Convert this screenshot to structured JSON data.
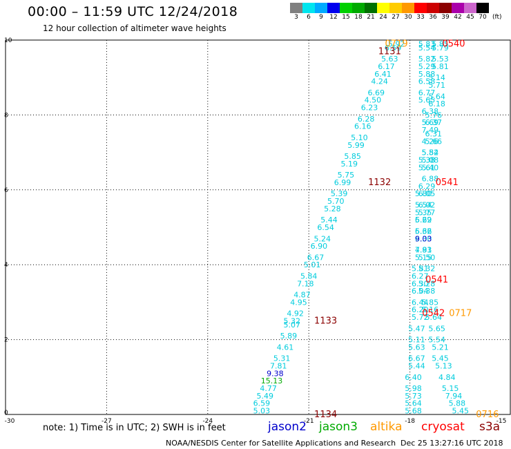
{
  "header": {
    "title": "00:00 – 11:59 UTC 12/24/2018",
    "subtitle": "12 hour collection of altimeter wave heights"
  },
  "colorbar": {
    "unit": "(ft)",
    "items": [
      {
        "label": "3",
        "color": "#808080"
      },
      {
        "label": "6",
        "color": "#00e5ee"
      },
      {
        "label": "9",
        "color": "#00aaff"
      },
      {
        "label": "12",
        "color": "#0000ee"
      },
      {
        "label": "15",
        "color": "#00d000"
      },
      {
        "label": "18",
        "color": "#00aa00"
      },
      {
        "label": "21",
        "color": "#007000"
      },
      {
        "label": "24",
        "color": "#ffff00"
      },
      {
        "label": "27",
        "color": "#ffcc00"
      },
      {
        "label": "30",
        "color": "#ff9900"
      },
      {
        "label": "33",
        "color": "#ff0000"
      },
      {
        "label": "36",
        "color": "#cc0000"
      },
      {
        "label": "39",
        "color": "#8b0000"
      },
      {
        "label": "42",
        "color": "#aa00aa"
      },
      {
        "label": "45",
        "color": "#cc66cc"
      },
      {
        "label": "70",
        "color": "#000000"
      }
    ]
  },
  "chart_data": {
    "type": "scatter",
    "x_ticks": [
      "-30",
      "-27",
      "-24",
      "-21",
      "-18",
      "-15"
    ],
    "y_ticks": [
      "0",
      "2",
      "4",
      "6",
      "8",
      "10"
    ],
    "xlim": [
      -30,
      -15
    ],
    "ylim": [
      0,
      10
    ],
    "grid": true,
    "points": [
      {
        "x": -22.4,
        "y": 0.1,
        "label": "5.03",
        "color": "#00ccdd"
      },
      {
        "x": -22.4,
        "y": 0.3,
        "label": "6.59",
        "color": "#00ccdd"
      },
      {
        "x": -22.3,
        "y": 0.5,
        "label": "5.49",
        "color": "#00ccdd"
      },
      {
        "x": -22.2,
        "y": 0.7,
        "label": "4.77",
        "color": "#00ccdd"
      },
      {
        "x": -22.1,
        "y": 0.9,
        "label": "15.13",
        "color": "#00aa00"
      },
      {
        "x": -22.0,
        "y": 1.1,
        "label": "9.38",
        "color": "#0000cc"
      },
      {
        "x": -21.9,
        "y": 1.3,
        "label": "7.81",
        "color": "#00ccdd"
      },
      {
        "x": -21.8,
        "y": 1.5,
        "label": "5.31",
        "color": "#00ccdd"
      },
      {
        "x": -21.7,
        "y": 1.8,
        "label": "4.61",
        "color": "#00ccdd"
      },
      {
        "x": -21.6,
        "y": 2.1,
        "label": "5.89",
        "color": "#00ccdd"
      },
      {
        "x": -21.5,
        "y": 2.4,
        "label": "5.07",
        "color": "#00ccdd"
      },
      {
        "x": -21.5,
        "y": 2.5,
        "label": "5.32",
        "color": "#00ccdd"
      },
      {
        "x": -21.4,
        "y": 2.7,
        "label": "4.92",
        "color": "#00ccdd"
      },
      {
        "x": -21.3,
        "y": 3.0,
        "label": "4.95",
        "color": "#00ccdd"
      },
      {
        "x": -21.2,
        "y": 3.2,
        "label": "4.87",
        "color": "#00ccdd"
      },
      {
        "x": -21.1,
        "y": 3.5,
        "label": "7.18",
        "color": "#00ccdd"
      },
      {
        "x": -21.0,
        "y": 3.7,
        "label": "5.84",
        "color": "#00ccdd"
      },
      {
        "x": -20.9,
        "y": 4.0,
        "label": "5.01",
        "color": "#00ccdd"
      },
      {
        "x": -20.8,
        "y": 4.2,
        "label": "6.67",
        "color": "#00ccdd"
      },
      {
        "x": -20.7,
        "y": 4.5,
        "label": "6.90",
        "color": "#00ccdd"
      },
      {
        "x": -20.6,
        "y": 4.7,
        "label": "5.24",
        "color": "#00ccdd"
      },
      {
        "x": -20.5,
        "y": 5.0,
        "label": "6.54",
        "color": "#00ccdd"
      },
      {
        "x": -20.4,
        "y": 5.2,
        "label": "5.44",
        "color": "#00ccdd"
      },
      {
        "x": -20.3,
        "y": 5.5,
        "label": "5.28",
        "color": "#00ccdd"
      },
      {
        "x": -20.2,
        "y": 5.7,
        "label": "5.70",
        "color": "#00ccdd"
      },
      {
        "x": -20.1,
        "y": 5.9,
        "label": "5.39",
        "color": "#00ccdd"
      },
      {
        "x": -20.0,
        "y": 6.2,
        "label": "6.99",
        "color": "#00ccdd"
      },
      {
        "x": -19.9,
        "y": 6.4,
        "label": "5.75",
        "color": "#00ccdd"
      },
      {
        "x": -19.8,
        "y": 6.7,
        "label": "5.19",
        "color": "#00ccdd"
      },
      {
        "x": -19.7,
        "y": 6.9,
        "label": "5.85",
        "color": "#00ccdd"
      },
      {
        "x": -19.6,
        "y": 7.2,
        "label": "5.99",
        "color": "#00ccdd"
      },
      {
        "x": -19.5,
        "y": 7.4,
        "label": "5.10",
        "color": "#00ccdd"
      },
      {
        "x": -19.4,
        "y": 7.7,
        "label": "6.16",
        "color": "#00ccdd"
      },
      {
        "x": -19.3,
        "y": 7.9,
        "label": "6.28",
        "color": "#00ccdd"
      },
      {
        "x": -19.2,
        "y": 8.2,
        "label": "6.23",
        "color": "#00ccdd"
      },
      {
        "x": -19.1,
        "y": 8.4,
        "label": "4.50",
        "color": "#00ccdd"
      },
      {
        "x": -19.0,
        "y": 8.6,
        "label": "6.69",
        "color": "#00ccdd"
      },
      {
        "x": -18.9,
        "y": 8.9,
        "label": "4.24",
        "color": "#00ccdd"
      },
      {
        "x": -18.8,
        "y": 9.1,
        "label": "6.41",
        "color": "#00ccdd"
      },
      {
        "x": -18.7,
        "y": 9.3,
        "label": "6.17",
        "color": "#00ccdd"
      },
      {
        "x": -18.6,
        "y": 9.5,
        "label": "5.63",
        "color": "#00ccdd"
      },
      {
        "x": -18.5,
        "y": 9.8,
        "label": "6.59",
        "color": "#00ccdd"
      },
      {
        "x": -18.4,
        "y": 9.9,
        "label": "5.92",
        "color": "#00ccdd"
      },
      {
        "x": -17.9,
        "y": 0.1,
        "label": "5.68",
        "color": "#00ccdd"
      },
      {
        "x": -17.9,
        "y": 0.3,
        "label": "5.64",
        "color": "#00ccdd"
      },
      {
        "x": -17.9,
        "y": 0.5,
        "label": "5.73",
        "color": "#00ccdd"
      },
      {
        "x": -17.9,
        "y": 0.7,
        "label": "5.98",
        "color": "#00ccdd"
      },
      {
        "x": -17.9,
        "y": 1.0,
        "label": "6.40",
        "color": "#00ccdd"
      },
      {
        "x": -17.8,
        "y": 1.3,
        "label": "5.44",
        "color": "#00ccdd"
      },
      {
        "x": -17.8,
        "y": 1.5,
        "label": "6.67",
        "color": "#00ccdd"
      },
      {
        "x": -17.8,
        "y": 1.8,
        "label": "5.63",
        "color": "#00ccdd"
      },
      {
        "x": -17.8,
        "y": 2.0,
        "label": "5.11",
        "color": "#00ccdd"
      },
      {
        "x": -17.8,
        "y": 2.3,
        "label": "5.47",
        "color": "#00ccdd"
      },
      {
        "x": -17.7,
        "y": 2.6,
        "label": "5.72",
        "color": "#00ccdd"
      },
      {
        "x": -17.7,
        "y": 2.8,
        "label": "6.20",
        "color": "#00ccdd"
      },
      {
        "x": -17.7,
        "y": 3.0,
        "label": "6.44",
        "color": "#00ccdd"
      },
      {
        "x": -17.7,
        "y": 3.3,
        "label": "6.04",
        "color": "#00ccdd"
      },
      {
        "x": -17.7,
        "y": 3.5,
        "label": "6.30",
        "color": "#00ccdd"
      },
      {
        "x": -17.7,
        "y": 3.7,
        "label": "6.27",
        "color": "#00ccdd"
      },
      {
        "x": -17.7,
        "y": 3.9,
        "label": "5.81",
        "color": "#00ccdd"
      },
      {
        "x": -17.6,
        "y": 4.2,
        "label": "5.15",
        "color": "#00ccdd"
      },
      {
        "x": -17.6,
        "y": 4.4,
        "label": "4.81",
        "color": "#00ccdd"
      },
      {
        "x": -17.6,
        "y": 4.7,
        "label": "6.30",
        "color": "#00ccdd"
      },
      {
        "x": -17.6,
        "y": 4.9,
        "label": "6.62",
        "color": "#00ccdd"
      },
      {
        "x": -17.6,
        "y": 5.2,
        "label": "6.62",
        "color": "#00ccdd"
      },
      {
        "x": -17.5,
        "y": 5.4,
        "label": "5.77",
        "color": "#00ccdd"
      },
      {
        "x": -17.5,
        "y": 5.6,
        "label": "6.02",
        "color": "#00ccdd"
      },
      {
        "x": -17.5,
        "y": 5.9,
        "label": "6.05",
        "color": "#00ccdd"
      },
      {
        "x": -17.5,
        "y": 6.1,
        "label": "6.29",
        "color": "#00ccdd"
      },
      {
        "x": -17.4,
        "y": 6.3,
        "label": "6.88",
        "color": "#00ccdd"
      },
      {
        "x": -17.4,
        "y": 6.6,
        "label": "5.40",
        "color": "#00ccdd"
      },
      {
        "x": -17.4,
        "y": 6.8,
        "label": "5.08",
        "color": "#00ccdd"
      },
      {
        "x": -17.4,
        "y": 7.0,
        "label": "5.82",
        "color": "#00ccdd"
      },
      {
        "x": -17.3,
        "y": 7.3,
        "label": "5.66",
        "color": "#00ccdd"
      },
      {
        "x": -17.3,
        "y": 7.5,
        "label": "6.31",
        "color": "#00ccdd"
      },
      {
        "x": -17.3,
        "y": 7.8,
        "label": "6.37",
        "color": "#00ccdd"
      },
      {
        "x": -17.3,
        "y": 8.0,
        "label": "5.76",
        "color": "#00ccdd"
      },
      {
        "x": -17.2,
        "y": 8.3,
        "label": "6.18",
        "color": "#00ccdd"
      },
      {
        "x": -17.2,
        "y": 8.5,
        "label": "5.64",
        "color": "#00ccdd"
      },
      {
        "x": -17.2,
        "y": 8.8,
        "label": "5.71",
        "color": "#00ccdd"
      },
      {
        "x": -17.2,
        "y": 9.0,
        "label": "5.14",
        "color": "#00ccdd"
      },
      {
        "x": -17.1,
        "y": 9.3,
        "label": "5.81",
        "color": "#00ccdd"
      },
      {
        "x": -17.1,
        "y": 9.5,
        "label": "5.53",
        "color": "#00ccdd"
      },
      {
        "x": -17.1,
        "y": 9.8,
        "label": "5.79",
        "color": "#00ccdd"
      },
      {
        "x": -17.1,
        "y": 9.9,
        "label": "5.85",
        "color": "#00ccdd"
      },
      {
        "x": -16.5,
        "y": 0.1,
        "label": "5.45",
        "color": "#00ccdd"
      },
      {
        "x": -16.6,
        "y": 0.3,
        "label": "5.88",
        "color": "#00ccdd"
      },
      {
        "x": -16.7,
        "y": 0.5,
        "label": "7.94",
        "color": "#00ccdd"
      },
      {
        "x": -16.8,
        "y": 0.7,
        "label": "5.15",
        "color": "#00ccdd"
      },
      {
        "x": -16.9,
        "y": 1.0,
        "label": "4.84",
        "color": "#00ccdd"
      },
      {
        "x": -17.0,
        "y": 1.3,
        "label": "5.13",
        "color": "#00ccdd"
      },
      {
        "x": -17.1,
        "y": 1.5,
        "label": "5.45",
        "color": "#00ccdd"
      },
      {
        "x": -17.1,
        "y": 1.8,
        "label": "5.21",
        "color": "#00ccdd"
      },
      {
        "x": -17.2,
        "y": 2.0,
        "label": "5.54",
        "color": "#00ccdd"
      },
      {
        "x": -17.2,
        "y": 2.3,
        "label": "5.65",
        "color": "#00ccdd"
      },
      {
        "x": -17.3,
        "y": 2.6,
        "label": "5.64",
        "color": "#00ccdd"
      },
      {
        "x": -17.4,
        "y": 2.8,
        "label": "5.16",
        "color": "#00ccdd"
      },
      {
        "x": -17.4,
        "y": 3.0,
        "label": "5.85",
        "color": "#00ccdd"
      },
      {
        "x": -17.5,
        "y": 3.3,
        "label": "5.38",
        "color": "#00ccdd"
      },
      {
        "x": -17.5,
        "y": 3.5,
        "label": "5.28",
        "color": "#00ccdd"
      },
      {
        "x": -17.5,
        "y": 3.9,
        "label": "5.32",
        "color": "#00ccdd"
      },
      {
        "x": -17.5,
        "y": 4.2,
        "label": "5.50",
        "color": "#00ccdd"
      },
      {
        "x": -17.6,
        "y": 4.4,
        "label": "7.93",
        "color": "#00ccdd"
      },
      {
        "x": -17.6,
        "y": 4.7,
        "label": "9.03",
        "color": "#0000cc"
      },
      {
        "x": -17.6,
        "y": 4.9,
        "label": "5.36",
        "color": "#00ccdd"
      },
      {
        "x": -17.6,
        "y": 5.2,
        "label": "5.29",
        "color": "#00ccdd"
      },
      {
        "x": -17.6,
        "y": 5.4,
        "label": "5.35",
        "color": "#00ccdd"
      },
      {
        "x": -17.6,
        "y": 5.6,
        "label": "5.54",
        "color": "#00ccdd"
      },
      {
        "x": -17.6,
        "y": 5.9,
        "label": "5.80",
        "color": "#00ccdd"
      },
      {
        "x": -17.5,
        "y": 6.6,
        "label": "5.61",
        "color": "#00ccdd"
      },
      {
        "x": -17.5,
        "y": 6.8,
        "label": "5.38",
        "color": "#00ccdd"
      },
      {
        "x": -17.4,
        "y": 7.0,
        "label": "5.54",
        "color": "#00ccdd"
      },
      {
        "x": -17.4,
        "y": 7.3,
        "label": "4.26",
        "color": "#00ccdd"
      },
      {
        "x": -17.4,
        "y": 7.6,
        "label": "7.49",
        "color": "#00ccdd"
      },
      {
        "x": -17.4,
        "y": 7.8,
        "label": "5.69",
        "color": "#00ccdd"
      },
      {
        "x": -17.4,
        "y": 8.1,
        "label": "6.38",
        "color": "#00ccdd"
      },
      {
        "x": -17.5,
        "y": 8.4,
        "label": "5.65",
        "color": "#00ccdd"
      },
      {
        "x": -17.5,
        "y": 8.6,
        "label": "6.77",
        "color": "#00ccdd"
      },
      {
        "x": -17.5,
        "y": 8.9,
        "label": "6.58",
        "color": "#00ccdd"
      },
      {
        "x": -17.5,
        "y": 9.1,
        "label": "5.88",
        "color": "#00ccdd"
      },
      {
        "x": -17.5,
        "y": 9.3,
        "label": "5.29",
        "color": "#00ccdd"
      },
      {
        "x": -17.5,
        "y": 9.5,
        "label": "5.82",
        "color": "#00ccdd"
      },
      {
        "x": -17.5,
        "y": 9.8,
        "label": "5.54",
        "color": "#00ccdd"
      },
      {
        "x": -17.5,
        "y": 9.9,
        "label": "5.83",
        "color": "#00ccdd"
      },
      {
        "x": -20.5,
        "y": 2.5,
        "label": "1133",
        "color": "#8b0000"
      },
      {
        "x": -20.5,
        "y": 0.0,
        "label": "1134",
        "color": "#8b0000"
      },
      {
        "x": -18.9,
        "y": 6.2,
        "label": "1132",
        "color": "#8b0000"
      },
      {
        "x": -18.6,
        "y": 9.7,
        "label": "1131",
        "color": "#8b0000"
      },
      {
        "x": -17.3,
        "y": 2.7,
        "label": "0542",
        "color": "#ff0000"
      },
      {
        "x": -17.2,
        "y": 3.6,
        "label": "0541",
        "color": "#ff0000"
      },
      {
        "x": -16.9,
        "y": 6.2,
        "label": "0541",
        "color": "#ff0000"
      },
      {
        "x": -16.7,
        "y": 9.9,
        "label": "0540",
        "color": "#ff0000"
      },
      {
        "x": -16.5,
        "y": 2.7,
        "label": "0717",
        "color": "#ff9900"
      },
      {
        "x": -15.7,
        "y": 0.0,
        "label": "0716",
        "color": "#ff9900"
      },
      {
        "x": -18.4,
        "y": 9.9,
        "label": "0719",
        "color": "#ff9900"
      }
    ]
  },
  "footer": {
    "note": "note: 1) Time is in UTC; 2) SWH is in feet",
    "legend": [
      {
        "label": "jason2",
        "color": "#0000cc"
      },
      {
        "label": "jason3",
        "color": "#00aa00"
      },
      {
        "label": "altika",
        "color": "#ff9900"
      },
      {
        "label": "cryosat",
        "color": "#ff0000"
      },
      {
        "label": "s3a",
        "color": "#8b0000"
      }
    ],
    "credit": "NOAA/NESDIS Center for Satellite Applications and Research",
    "timestamp": "Dec 25 13:27:16 UTC 2018"
  }
}
